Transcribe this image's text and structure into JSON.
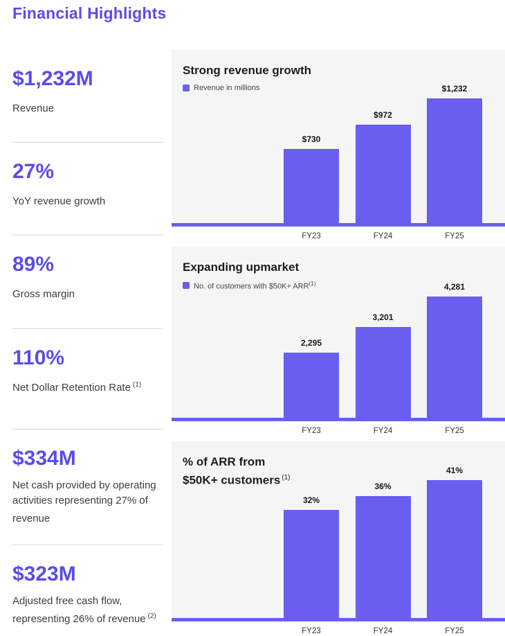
{
  "colors": {
    "accent": "#5a4ceb",
    "bar": "#6a5ef0",
    "panel": "#f5f5f5",
    "divider": "#d8d8d8"
  },
  "page": {
    "title": "Financial Highlights"
  },
  "stats": [
    {
      "value": "$1,232M",
      "label": "Revenue",
      "sup": ""
    },
    {
      "value": "27%",
      "label": "YoY revenue growth",
      "sup": ""
    },
    {
      "value": "89%",
      "label": "Gross margin",
      "sup": ""
    },
    {
      "value": "110%",
      "label": "Net Dollar Retention Rate",
      "sup": "(1)"
    },
    {
      "value": "$334M",
      "label": "Net cash provided by operating activities representing 27% of revenue",
      "sup": ""
    },
    {
      "value": "$323M",
      "label": "Adjusted free cash flow, representing 26% of revenue",
      "sup": "(2)"
    }
  ],
  "chart_data": [
    {
      "type": "bar",
      "title": "Strong revenue growth",
      "legend": "Revenue in millions",
      "legend_position": "top-left",
      "categories": [
        "FY23",
        "FY24",
        "FY25"
      ],
      "values": [
        730,
        972,
        1232
      ],
      "value_labels": [
        "$730",
        "$972",
        "$1,232"
      ],
      "xlabel": "",
      "ylabel": "",
      "ylim": [
        0,
        1400
      ],
      "grid": false
    },
    {
      "type": "bar",
      "title": "Expanding upmarket",
      "legend": "No. of customers with $50K+ ARR",
      "legend_sup": "(1)",
      "legend_position": "top-left",
      "categories": [
        "FY23",
        "FY24",
        "FY25"
      ],
      "values": [
        2295,
        3201,
        4281
      ],
      "value_labels": [
        "2,295",
        "3,201",
        "4,281"
      ],
      "xlabel": "",
      "ylabel": "",
      "ylim": [
        0,
        4900
      ],
      "grid": false
    },
    {
      "type": "bar",
      "title": "% of ARR from $50K+ customers (1)",
      "title_lines": [
        "% of ARR from",
        "$50K+ customers"
      ],
      "title_sup": "(1)",
      "legend": "",
      "categories": [
        "FY23",
        "FY24",
        "FY25"
      ],
      "values": [
        32,
        36,
        41
      ],
      "value_labels": [
        "32%",
        "36%",
        "41%"
      ],
      "xlabel": "",
      "ylabel": "",
      "ylim": [
        0,
        45
      ],
      "grid": false
    }
  ]
}
